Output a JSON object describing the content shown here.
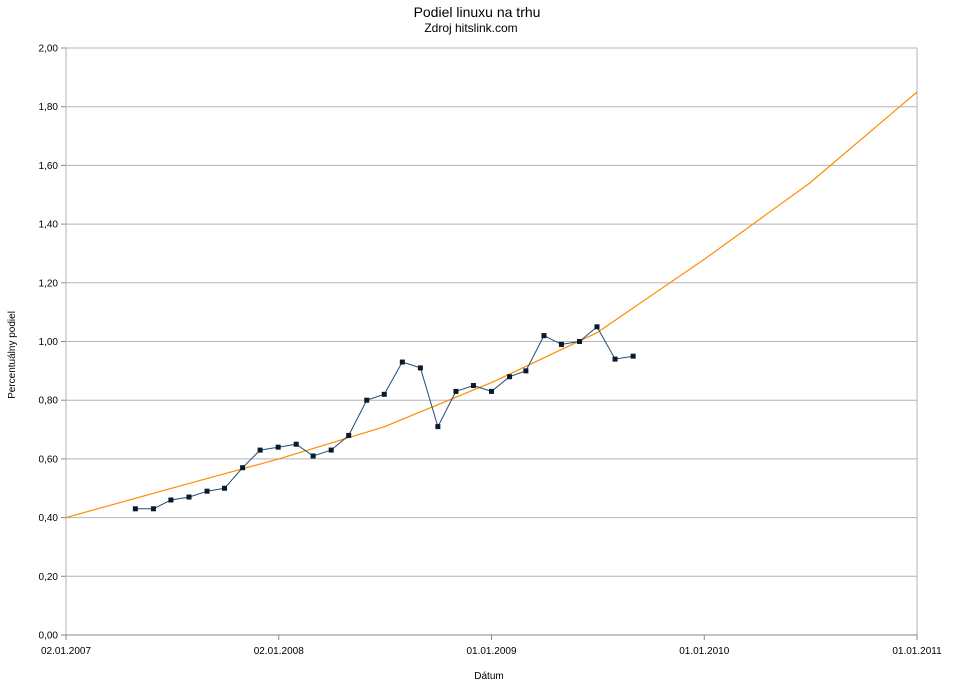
{
  "chart_data": {
    "type": "line",
    "title": "Podiel linuxu na trhu",
    "subtitle": "Zdroj hitslink.com",
    "xlabel": "Dátum",
    "ylabel": "Percentuálny podiel",
    "ylim": [
      0,
      2
    ],
    "yticks": [
      "0,00",
      "0,20",
      "0,40",
      "0,60",
      "0,80",
      "1,00",
      "1,20",
      "1,40",
      "1,60",
      "1,80",
      "2,00"
    ],
    "xlim": [
      "2007-01-02",
      "2011-01-01"
    ],
    "xticks": [
      "02.01.2007",
      "02.01.2008",
      "01.01.2009",
      "01.01.2010",
      "01.01.2011"
    ],
    "grid": true,
    "legend": "none",
    "colors": {
      "data": "#1f4e79",
      "marker": "#0a1a2a",
      "trend": "#ff8c00",
      "grid": "#b3b3b3",
      "axis": "#b3b3b3"
    },
    "series": [
      {
        "type": "line-markers",
        "x": [
          "2007-05-01",
          "2007-06-01",
          "2007-07-01",
          "2007-08-01",
          "2007-09-01",
          "2007-10-01",
          "2007-11-01",
          "2007-12-01",
          "2008-01-01",
          "2008-02-01",
          "2008-03-01",
          "2008-04-01",
          "2008-05-01",
          "2008-06-01",
          "2008-07-01",
          "2008-08-01",
          "2008-09-01",
          "2008-10-01",
          "2008-11-01",
          "2008-12-01",
          "2009-01-01",
          "2009-02-01",
          "2009-03-01",
          "2009-04-01",
          "2009-05-01",
          "2009-06-01",
          "2009-07-01",
          "2009-08-01",
          "2009-09-01"
        ],
        "values": [
          0.43,
          0.43,
          0.46,
          0.47,
          0.49,
          0.5,
          0.57,
          0.63,
          0.64,
          0.65,
          0.61,
          0.63,
          0.68,
          0.8,
          0.82,
          0.93,
          0.91,
          0.71,
          0.83,
          0.85,
          0.83,
          0.88,
          0.9,
          1.02,
          0.99,
          1.0,
          1.05,
          0.94,
          0.95
        ]
      },
      {
        "type": "trend",
        "x": [
          "2007-01-02",
          "2007-07-02",
          "2008-01-02",
          "2008-07-02",
          "2009-01-01",
          "2009-07-01",
          "2010-01-01",
          "2010-07-01",
          "2011-01-01"
        ],
        "values": [
          0.4,
          0.5,
          0.6,
          0.71,
          0.86,
          1.03,
          1.28,
          1.54,
          1.85
        ]
      }
    ]
  }
}
